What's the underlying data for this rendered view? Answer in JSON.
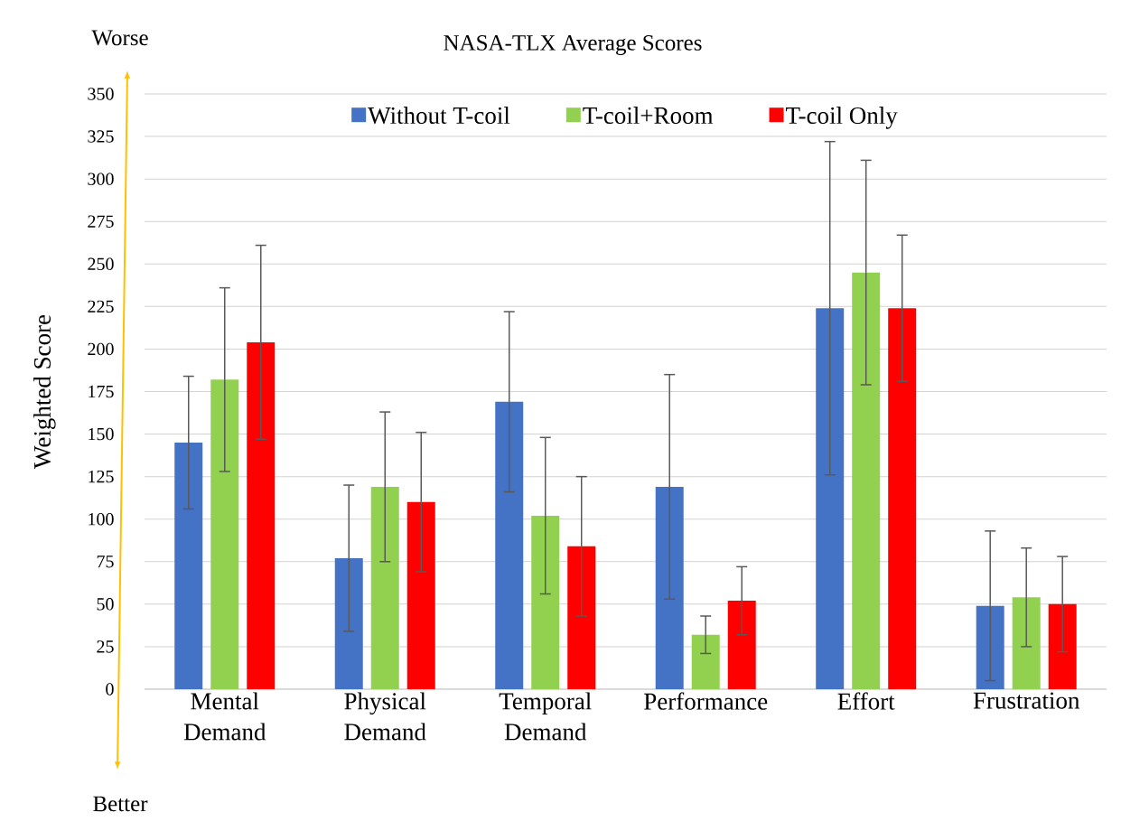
{
  "chart_data": {
    "type": "bar",
    "title": "NASA-TLX Average Scores",
    "ylabel": "Weighted Score",
    "categories": [
      "Mental Demand",
      "Physical Demand",
      "Temporal Demand",
      "Performance",
      "Effort",
      "Frustration"
    ],
    "series": [
      {
        "name": "Without T-coil",
        "color": "#4472c4",
        "values": [
          145,
          77,
          169,
          119,
          224,
          49
        ],
        "errors": [
          39,
          43,
          53,
          66,
          98,
          44
        ]
      },
      {
        "name": "T-coil+Room",
        "color": "#92d050",
        "values": [
          182,
          119,
          102,
          32,
          245,
          54
        ],
        "errors": [
          54,
          44,
          46,
          11,
          66,
          29
        ]
      },
      {
        "name": "T-coil Only",
        "color": "#ff0000",
        "values": [
          204,
          110,
          84,
          52,
          224,
          50
        ],
        "errors": [
          57,
          41,
          41,
          20,
          43,
          28
        ]
      }
    ],
    "ylim": [
      0,
      350
    ],
    "yticks": [
      0,
      25,
      50,
      75,
      100,
      125,
      150,
      175,
      200,
      225,
      250,
      275,
      300,
      325,
      350
    ],
    "grid": "y",
    "legend": "top",
    "annotations": [
      "Worse",
      "Better"
    ]
  }
}
